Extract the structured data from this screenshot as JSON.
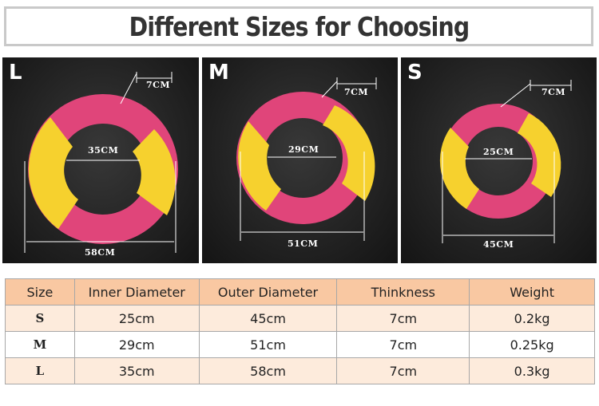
{
  "title": "Different Sizes for Choosing",
  "panels": [
    {
      "size": "L",
      "thickness": "7CM",
      "inner": "35CM",
      "outer": "58CM"
    },
    {
      "size": "M",
      "thickness": "7CM",
      "inner": "29CM",
      "outer": "51CM"
    },
    {
      "size": "S",
      "thickness": "7CM",
      "inner": "25CM",
      "outer": "45CM"
    }
  ],
  "colors": {
    "ring_pink": "#e0457a",
    "ring_yellow": "#f6d12e",
    "header_bg": "#f9c8a2",
    "row_bg": "#fdebdc"
  },
  "table": {
    "headers": [
      "Size",
      "Inner Diameter",
      "Outer Diameter",
      "Thinkness",
      "Weight"
    ],
    "rows": [
      [
        "S",
        "25cm",
        "45cm",
        "7cm",
        "0.2kg"
      ],
      [
        "M",
        "29cm",
        "51cm",
        "7cm",
        "0.25kg"
      ],
      [
        "L",
        "35cm",
        "58cm",
        "7cm",
        "0.3kg"
      ]
    ]
  }
}
